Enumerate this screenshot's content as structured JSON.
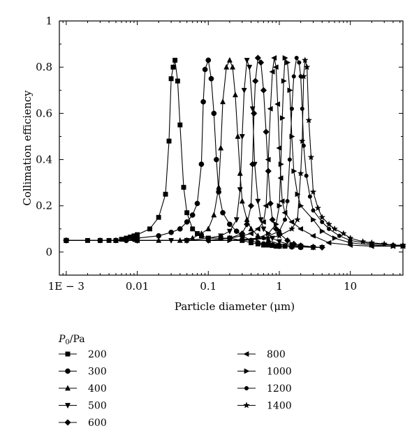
{
  "chart_data": {
    "type": "line",
    "xlabel": "Particle diameter (μm)",
    "ylabel": "Collimation efficiency",
    "x_scale": "log",
    "xlim": [
      0.0008,
      55
    ],
    "ylim": [
      -0.1,
      1
    ],
    "x_ticks": [
      {
        "value": 0.001,
        "label": "1E − 3"
      },
      {
        "value": 0.01,
        "label": "0.01"
      },
      {
        "value": 0.1,
        "label": "0.1"
      },
      {
        "value": 1,
        "label": "1"
      },
      {
        "value": 10,
        "label": "10"
      }
    ],
    "y_ticks": [
      {
        "value": 0,
        "label": "0"
      },
      {
        "value": 0.2,
        "label": "0.2"
      },
      {
        "value": 0.4,
        "label": "0.4"
      },
      {
        "value": 0.6,
        "label": "0.6"
      },
      {
        "value": 0.8,
        "label": "0.8"
      },
      {
        "value": 1,
        "label": "1"
      }
    ],
    "legend_title": "P0/Pa",
    "legend_position": "below",
    "series": [
      {
        "name": "200",
        "marker": "square",
        "points": [
          [
            0.001,
            0.05
          ],
          [
            0.002,
            0.05
          ],
          [
            0.003,
            0.05
          ],
          [
            0.004,
            0.05
          ],
          [
            0.005,
            0.05
          ],
          [
            0.006,
            0.055
          ],
          [
            0.007,
            0.06
          ],
          [
            0.008,
            0.065
          ],
          [
            0.009,
            0.07
          ],
          [
            0.01,
            0.075
          ],
          [
            0.015,
            0.1
          ],
          [
            0.02,
            0.15
          ],
          [
            0.025,
            0.25
          ],
          [
            0.028,
            0.48
          ],
          [
            0.03,
            0.75
          ],
          [
            0.032,
            0.8
          ],
          [
            0.034,
            0.83
          ],
          [
            0.037,
            0.74
          ],
          [
            0.04,
            0.55
          ],
          [
            0.045,
            0.28
          ],
          [
            0.05,
            0.17
          ],
          [
            0.06,
            0.1
          ],
          [
            0.07,
            0.08
          ],
          [
            0.08,
            0.07
          ],
          [
            0.1,
            0.06
          ],
          [
            0.15,
            0.06
          ],
          [
            0.2,
            0.06
          ],
          [
            0.3,
            0.05
          ],
          [
            0.4,
            0.04
          ],
          [
            0.5,
            0.035
          ],
          [
            0.6,
            0.03
          ],
          [
            0.7,
            0.03
          ],
          [
            0.8,
            0.028
          ],
          [
            0.9,
            0.025
          ],
          [
            1,
            0.025
          ],
          [
            1.2,
            0.025
          ]
        ]
      },
      {
        "name": "300",
        "marker": "circle",
        "points": [
          [
            0.001,
            0.05
          ],
          [
            0.003,
            0.05
          ],
          [
            0.005,
            0.05
          ],
          [
            0.007,
            0.05
          ],
          [
            0.009,
            0.055
          ],
          [
            0.01,
            0.06
          ],
          [
            0.02,
            0.07
          ],
          [
            0.03,
            0.085
          ],
          [
            0.04,
            0.1
          ],
          [
            0.05,
            0.13
          ],
          [
            0.06,
            0.16
          ],
          [
            0.07,
            0.21
          ],
          [
            0.08,
            0.38
          ],
          [
            0.085,
            0.65
          ],
          [
            0.09,
            0.79
          ],
          [
            0.1,
            0.83
          ],
          [
            0.11,
            0.75
          ],
          [
            0.12,
            0.6
          ],
          [
            0.13,
            0.4
          ],
          [
            0.14,
            0.26
          ],
          [
            0.16,
            0.17
          ],
          [
            0.2,
            0.12
          ],
          [
            0.25,
            0.09
          ],
          [
            0.3,
            0.07
          ],
          [
            0.4,
            0.05
          ],
          [
            0.5,
            0.04
          ],
          [
            0.6,
            0.035
          ],
          [
            0.8,
            0.03
          ],
          [
            1,
            0.025
          ],
          [
            1.5,
            0.022
          ],
          [
            2,
            0.02
          ]
        ]
      },
      {
        "name": "400",
        "marker": "triangle-up",
        "points": [
          [
            0.001,
            0.05
          ],
          [
            0.005,
            0.05
          ],
          [
            0.01,
            0.05
          ],
          [
            0.02,
            0.05
          ],
          [
            0.04,
            0.05
          ],
          [
            0.06,
            0.06
          ],
          [
            0.08,
            0.08
          ],
          [
            0.1,
            0.1
          ],
          [
            0.12,
            0.16
          ],
          [
            0.14,
            0.28
          ],
          [
            0.15,
            0.45
          ],
          [
            0.16,
            0.65
          ],
          [
            0.18,
            0.8
          ],
          [
            0.2,
            0.83
          ],
          [
            0.22,
            0.8
          ],
          [
            0.24,
            0.68
          ],
          [
            0.26,
            0.5
          ],
          [
            0.28,
            0.34
          ],
          [
            0.3,
            0.22
          ],
          [
            0.35,
            0.14
          ],
          [
            0.4,
            0.1
          ],
          [
            0.5,
            0.07
          ],
          [
            0.7,
            0.05
          ],
          [
            1,
            0.035
          ],
          [
            1.5,
            0.025
          ],
          [
            2,
            0.022
          ],
          [
            3,
            0.02
          ]
        ]
      },
      {
        "name": "500",
        "marker": "triangle-down",
        "points": [
          [
            0.001,
            0.05
          ],
          [
            0.01,
            0.05
          ],
          [
            0.03,
            0.05
          ],
          [
            0.05,
            0.05
          ],
          [
            0.1,
            0.06
          ],
          [
            0.15,
            0.07
          ],
          [
            0.2,
            0.09
          ],
          [
            0.25,
            0.14
          ],
          [
            0.28,
            0.27
          ],
          [
            0.3,
            0.5
          ],
          [
            0.32,
            0.7
          ],
          [
            0.35,
            0.83
          ],
          [
            0.38,
            0.8
          ],
          [
            0.42,
            0.62
          ],
          [
            0.45,
            0.38
          ],
          [
            0.5,
            0.22
          ],
          [
            0.55,
            0.14
          ],
          [
            0.6,
            0.1
          ],
          [
            0.8,
            0.06
          ],
          [
            1,
            0.045
          ],
          [
            1.5,
            0.03
          ],
          [
            2,
            0.025
          ],
          [
            3,
            0.02
          ],
          [
            4,
            0.02
          ]
        ]
      },
      {
        "name": "600",
        "marker": "diamond",
        "points": [
          [
            0.001,
            0.05
          ],
          [
            0.01,
            0.05
          ],
          [
            0.05,
            0.05
          ],
          [
            0.1,
            0.05
          ],
          [
            0.2,
            0.06
          ],
          [
            0.3,
            0.08
          ],
          [
            0.35,
            0.12
          ],
          [
            0.4,
            0.2
          ],
          [
            0.42,
            0.38
          ],
          [
            0.44,
            0.6
          ],
          [
            0.46,
            0.74
          ],
          [
            0.5,
            0.84
          ],
          [
            0.55,
            0.82
          ],
          [
            0.6,
            0.7
          ],
          [
            0.65,
            0.52
          ],
          [
            0.7,
            0.35
          ],
          [
            0.75,
            0.21
          ],
          [
            0.8,
            0.14
          ],
          [
            0.9,
            0.1
          ],
          [
            1,
            0.08
          ],
          [
            1.3,
            0.05
          ],
          [
            1.6,
            0.035
          ],
          [
            2,
            0.028
          ],
          [
            3,
            0.022
          ],
          [
            4,
            0.02
          ]
        ]
      },
      {
        "name": "800",
        "marker": "triangle-left",
        "points": [
          [
            0.001,
            0.05
          ],
          [
            0.01,
            0.05
          ],
          [
            0.1,
            0.05
          ],
          [
            0.2,
            0.06
          ],
          [
            0.3,
            0.07
          ],
          [
            0.4,
            0.08
          ],
          [
            0.5,
            0.1
          ],
          [
            0.6,
            0.13
          ],
          [
            0.65,
            0.2
          ],
          [
            0.7,
            0.4
          ],
          [
            0.75,
            0.62
          ],
          [
            0.8,
            0.78
          ],
          [
            0.85,
            0.84
          ],
          [
            0.9,
            0.8
          ],
          [
            0.95,
            0.64
          ],
          [
            1,
            0.45
          ],
          [
            1.05,
            0.32
          ],
          [
            1.1,
            0.22
          ],
          [
            1.2,
            0.17
          ],
          [
            1.5,
            0.13
          ],
          [
            2,
            0.1
          ],
          [
            3,
            0.07
          ],
          [
            5,
            0.04
          ],
          [
            10,
            0.03
          ],
          [
            20,
            0.025
          ],
          [
            40,
            0.025
          ],
          [
            55,
            0.025
          ]
        ]
      },
      {
        "name": "1000",
        "marker": "triangle-right",
        "points": [
          [
            0.001,
            0.05
          ],
          [
            0.05,
            0.05
          ],
          [
            0.2,
            0.05
          ],
          [
            0.5,
            0.06
          ],
          [
            0.7,
            0.08
          ],
          [
            0.9,
            0.12
          ],
          [
            1,
            0.2
          ],
          [
            1.05,
            0.38
          ],
          [
            1.1,
            0.58
          ],
          [
            1.15,
            0.74
          ],
          [
            1.2,
            0.84
          ],
          [
            1.3,
            0.82
          ],
          [
            1.4,
            0.7
          ],
          [
            1.5,
            0.5
          ],
          [
            1.6,
            0.35
          ],
          [
            1.8,
            0.25
          ],
          [
            2,
            0.2
          ],
          [
            3,
            0.14
          ],
          [
            4,
            0.09
          ],
          [
            6,
            0.06
          ],
          [
            10,
            0.04
          ],
          [
            20,
            0.03
          ],
          [
            40,
            0.025
          ],
          [
            55,
            0.025
          ]
        ]
      },
      {
        "name": "1200",
        "marker": "dot",
        "points": [
          [
            0.001,
            0.05
          ],
          [
            0.05,
            0.05
          ],
          [
            0.3,
            0.05
          ],
          [
            0.6,
            0.06
          ],
          [
            1,
            0.09
          ],
          [
            1.2,
            0.14
          ],
          [
            1.3,
            0.22
          ],
          [
            1.4,
            0.4
          ],
          [
            1.5,
            0.62
          ],
          [
            1.6,
            0.76
          ],
          [
            1.75,
            0.84
          ],
          [
            1.9,
            0.82
          ],
          [
            2,
            0.76
          ],
          [
            2.1,
            0.62
          ],
          [
            2.2,
            0.46
          ],
          [
            2.4,
            0.33
          ],
          [
            2.7,
            0.24
          ],
          [
            3,
            0.18
          ],
          [
            4,
            0.13
          ],
          [
            5,
            0.1
          ],
          [
            7,
            0.07
          ],
          [
            10,
            0.05
          ],
          [
            20,
            0.035
          ],
          [
            40,
            0.03
          ],
          [
            55,
            0.025
          ]
        ]
      },
      {
        "name": "1400",
        "marker": "star",
        "points": [
          [
            0.001,
            0.05
          ],
          [
            0.05,
            0.05
          ],
          [
            0.3,
            0.05
          ],
          [
            0.7,
            0.06
          ],
          [
            1,
            0.07
          ],
          [
            1.5,
            0.1
          ],
          [
            1.8,
            0.14
          ],
          [
            2,
            0.34
          ],
          [
            2.1,
            0.48
          ],
          [
            2.2,
            0.76
          ],
          [
            2.3,
            0.83
          ],
          [
            2.45,
            0.8
          ],
          [
            2.6,
            0.57
          ],
          [
            2.8,
            0.41
          ],
          [
            3,
            0.26
          ],
          [
            3.5,
            0.19
          ],
          [
            4,
            0.15
          ],
          [
            5,
            0.12
          ],
          [
            6,
            0.1
          ],
          [
            8,
            0.08
          ],
          [
            10,
            0.06
          ],
          [
            15,
            0.045
          ],
          [
            20,
            0.04
          ],
          [
            30,
            0.035
          ],
          [
            40,
            0.03
          ],
          [
            55,
            0.03
          ]
        ]
      }
    ]
  }
}
